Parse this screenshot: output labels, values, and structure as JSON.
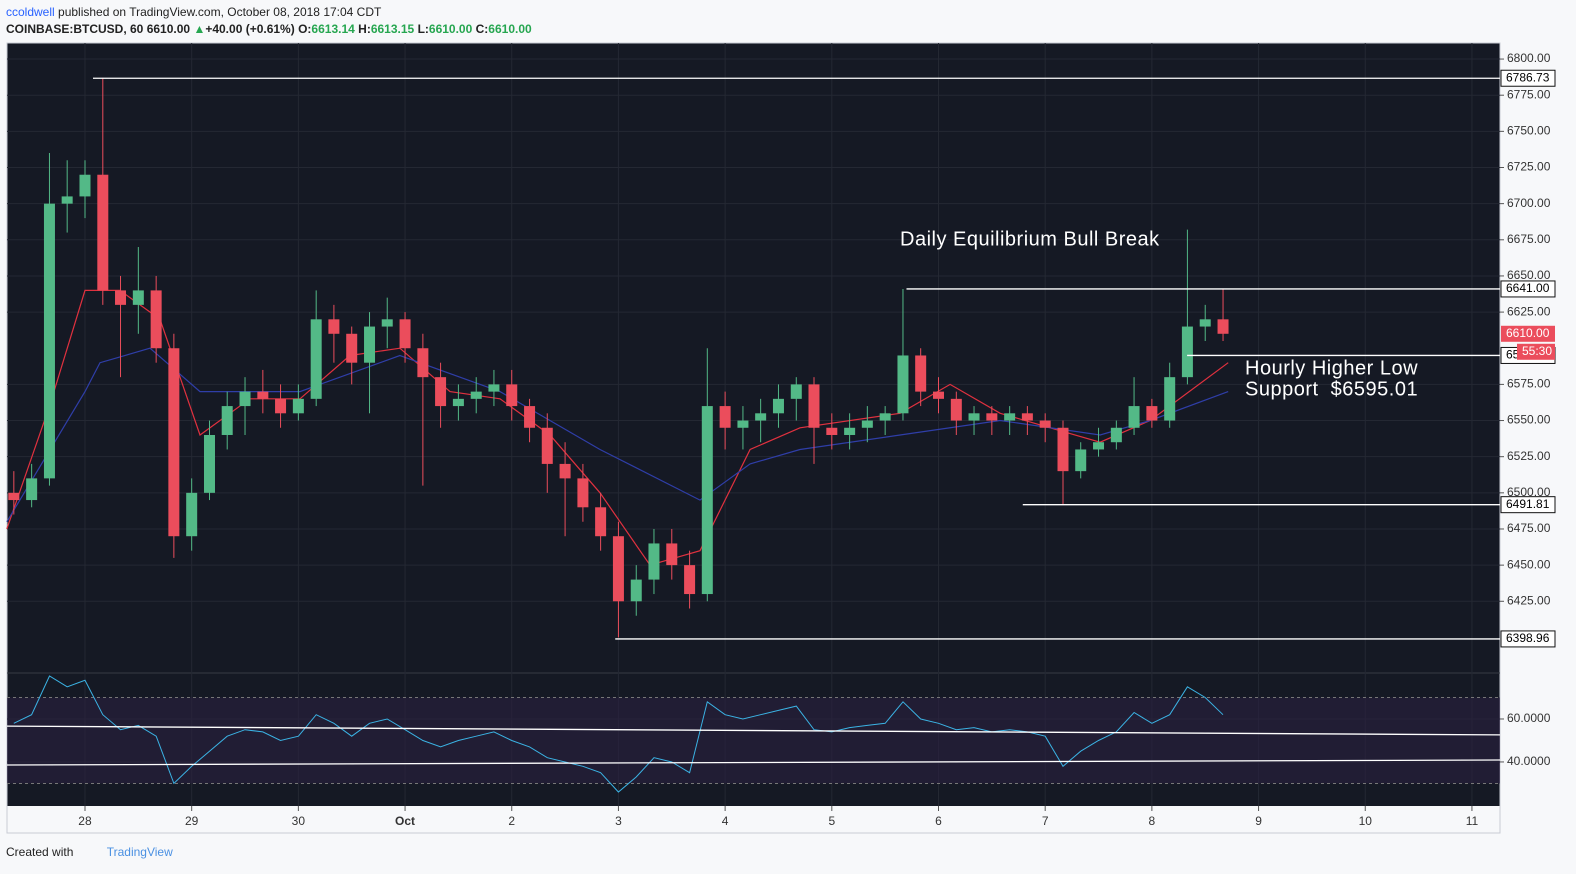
{
  "header": {
    "user": "ccoldwell",
    "published": "published on TradingView.com, October 08, 2018 17:04 CDT",
    "symbol": "COINBASE:BTCUSD, 60",
    "last": "6610.00",
    "arrow": "▲",
    "change": "+40.00 (+0.61%)",
    "o_label": "O:",
    "o": "6613.14",
    "h_label": "H:",
    "h": "6613.15",
    "l_label": "L:",
    "l": "6610.00",
    "c_label": "C:",
    "c": "6610.00"
  },
  "footer": {
    "created": "Created with",
    "brand": "TradingView"
  },
  "chart_data": [
    {
      "type": "candlestick",
      "up_color": "#53b987",
      "down_color": "#eb4d5c",
      "grid": true,
      "x": [
        -0.667,
        -0.5,
        -0.333,
        -0.167,
        0,
        0.167,
        0.333,
        0.5,
        0.667,
        0.833,
        1,
        1.167,
        1.333,
        1.5,
        1.667,
        1.833,
        2,
        2.167,
        2.333,
        2.5,
        2.667,
        2.833,
        3,
        3.167,
        3.333,
        3.5,
        3.667,
        3.833,
        4,
        4.167,
        4.333,
        4.5,
        4.667,
        4.833,
        5,
        5.167,
        5.333,
        5.5,
        5.667,
        5.833,
        6,
        6.167,
        6.333,
        6.5,
        6.667,
        6.833,
        7,
        7.167,
        7.333,
        7.5,
        7.667,
        7.833,
        8,
        8.167,
        8.333,
        8.5,
        8.667,
        8.833,
        9,
        9.167,
        9.333,
        9.5,
        9.667,
        9.833,
        10,
        10.167,
        10.333,
        10.5,
        10.667
      ],
      "open": [
        6500,
        6495,
        6510,
        6700,
        6705,
        6720,
        6640,
        6630,
        6640,
        6600,
        6470,
        6500,
        6540,
        6560,
        6570,
        6565,
        6555,
        6565,
        6620,
        6610,
        6590,
        6615,
        6620,
        6600,
        6580,
        6560,
        6565,
        6570,
        6575,
        6560,
        6545,
        6520,
        6510,
        6490,
        6470,
        6425,
        6440,
        6465,
        6450,
        6430,
        6560,
        6545,
        6550,
        6555,
        6565,
        6575,
        6545,
        6540,
        6545,
        6550,
        6555,
        6595,
        6570,
        6565,
        6550,
        6555,
        6550,
        6555,
        6550,
        6545,
        6515,
        6530,
        6535,
        6545,
        6560,
        6550,
        6580,
        6615,
        6620
      ],
      "high": [
        6515,
        6520,
        6735,
        6730,
        6730,
        6787,
        6650,
        6670,
        6650,
        6610,
        6510,
        6550,
        6570,
        6580,
        6585,
        6575,
        6575,
        6640,
        6630,
        6615,
        6625,
        6635,
        6625,
        6610,
        6590,
        6575,
        6580,
        6585,
        6585,
        6565,
        6555,
        6535,
        6520,
        6500,
        6480,
        6450,
        6475,
        6475,
        6460,
        6600,
        6570,
        6560,
        6565,
        6575,
        6580,
        6580,
        6555,
        6555,
        6560,
        6560,
        6641,
        6600,
        6580,
        6570,
        6560,
        6560,
        6560,
        6560,
        6555,
        6550,
        6535,
        6545,
        6550,
        6580,
        6565,
        6590,
        6682,
        6630,
        6641
      ],
      "low": [
        6485,
        6490,
        6505,
        6680,
        6690,
        6630,
        6580,
        6610,
        6590,
        6455,
        6460,
        6495,
        6530,
        6540,
        6555,
        6545,
        6550,
        6560,
        6590,
        6575,
        6555,
        6600,
        6590,
        6505,
        6545,
        6550,
        6555,
        6560,
        6550,
        6535,
        6500,
        6470,
        6480,
        6460,
        6400,
        6415,
        6430,
        6440,
        6420,
        6425,
        6530,
        6530,
        6535,
        6545,
        6550,
        6520,
        6530,
        6530,
        6535,
        6540,
        6550,
        6560,
        6555,
        6540,
        6540,
        6540,
        6540,
        6540,
        6535,
        6492,
        6510,
        6525,
        6530,
        6540,
        6545,
        6545,
        6575,
        6605,
        6605
      ],
      "close": [
        6495,
        6510,
        6700,
        6705,
        6720,
        6640,
        6630,
        6640,
        6600,
        6470,
        6500,
        6540,
        6560,
        6570,
        6565,
        6555,
        6565,
        6620,
        6610,
        6590,
        6615,
        6620,
        6600,
        6580,
        6560,
        6565,
        6570,
        6575,
        6560,
        6545,
        6520,
        6510,
        6490,
        6470,
        6425,
        6440,
        6465,
        6450,
        6430,
        6560,
        6545,
        6550,
        6555,
        6565,
        6575,
        6545,
        6540,
        6545,
        6550,
        6555,
        6595,
        6570,
        6565,
        6550,
        6555,
        6550,
        6555,
        6550,
        6545,
        6515,
        6530,
        6535,
        6545,
        6560,
        6550,
        6580,
        6615,
        6620,
        6610
      ],
      "series": [
        {
          "color": "#e0313f",
          "x": [
            -0.733,
            -0.333,
            0,
            0.328,
            0.703,
            1.078,
            1.546,
            2.015,
            2.484,
            2.952,
            3.421,
            3.89,
            4.359,
            4.827,
            5.296,
            5.765,
            6.234,
            6.702,
            7.64,
            8.109,
            8.578,
            9.046,
            9.515,
            9.984,
            10.715
          ],
          "values": [
            6475,
            6560,
            6640,
            6640,
            6620,
            6540,
            6565,
            6565,
            6595,
            6600,
            6570,
            6565,
            6540,
            6500,
            6450,
            6460,
            6530,
            6545,
            6555,
            6575,
            6555,
            6545,
            6535,
            6550,
            6590
          ]
        },
        {
          "color": "#2f3ea8",
          "x": [
            -0.733,
            0,
            0.141,
            0.609,
            1.078,
            2.015,
            2.952,
            3.89,
            4.827,
            5.765,
            6.234,
            6.702,
            7.64,
            8.578,
            9.515,
            9.984,
            10.715
          ],
          "values": [
            6480,
            6570,
            6590,
            6600,
            6570,
            6570,
            6595,
            6570,
            6530,
            6495,
            6520,
            6530,
            6540,
            6550,
            6540,
            6550,
            6570
          ]
        }
      ],
      "levels": [
        {
          "value": 6786.73,
          "start": 0.075
        },
        {
          "value": 6641,
          "label": "6641.00",
          "start": 7.7
        },
        {
          "value": 6595.01,
          "start": 10.33
        },
        {
          "value": 6491.81,
          "start": 8.79
        },
        {
          "value": 6398.96,
          "start": 4.97
        }
      ],
      "last_price": {
        "value": 6610,
        "label": "6610.00",
        "countdown": "55:30"
      },
      "annotations": [
        [
          "Daily Equilibrium Bull Break"
        ],
        [
          "Hourly Higher Low",
          "Support  $6595.01"
        ]
      ],
      "xlim": [
        -0.731,
        13.263
      ],
      "xticks": [
        {
          "value": 0,
          "label": "28"
        },
        {
          "value": 1,
          "label": "29"
        },
        {
          "value": 2,
          "label": "30"
        },
        {
          "value": 3,
          "label": "Oct"
        },
        {
          "value": 4,
          "label": "2"
        },
        {
          "value": 5,
          "label": "3"
        },
        {
          "value": 6,
          "label": "4"
        },
        {
          "value": 7,
          "label": "5"
        },
        {
          "value": 8,
          "label": "6"
        },
        {
          "value": 9,
          "label": "7"
        },
        {
          "value": 10,
          "label": "8"
        },
        {
          "value": 11,
          "label": "9"
        },
        {
          "value": 12,
          "label": "10"
        },
        {
          "value": 13,
          "label": "11"
        }
      ],
      "ylim": [
        6375.4,
        6811.1
      ],
      "yticks": [
        {
          "value": 6425,
          "label": "6425.00"
        },
        {
          "value": 6450,
          "label": "6450.00"
        },
        {
          "value": 6475,
          "label": "6475.00"
        },
        {
          "value": 6500,
          "label": "6500.00"
        },
        {
          "value": 6525,
          "label": "6525.00"
        },
        {
          "value": 6550,
          "label": "6550.00"
        },
        {
          "value": 6575,
          "label": "6575.00"
        },
        {
          "value": 6625,
          "label": "6625.00"
        },
        {
          "value": 6650,
          "label": "6650.00"
        },
        {
          "value": 6675,
          "label": "6675.00"
        },
        {
          "value": 6700,
          "label": "6700.00"
        },
        {
          "value": 6725,
          "label": "6725.00"
        },
        {
          "value": 6750,
          "label": "6750.00"
        },
        {
          "value": 6775,
          "label": "6775.00"
        },
        {
          "value": 6800,
          "label": "6800.00"
        }
      ]
    },
    {
      "type": "line",
      "color": "#3bb3e4",
      "band": [
        30,
        70
      ],
      "band_color": "#2a2040",
      "x": [
        -0.667,
        -0.5,
        -0.333,
        -0.167,
        0,
        0.167,
        0.333,
        0.5,
        0.667,
        0.833,
        1,
        1.167,
        1.333,
        1.5,
        1.667,
        1.833,
        2,
        2.167,
        2.333,
        2.5,
        2.667,
        2.833,
        3,
        3.167,
        3.333,
        3.5,
        3.667,
        3.833,
        4,
        4.167,
        4.333,
        4.5,
        4.667,
        4.833,
        5,
        5.167,
        5.333,
        5.5,
        5.667,
        5.833,
        6,
        6.167,
        6.333,
        6.5,
        6.667,
        6.833,
        7,
        7.167,
        7.333,
        7.5,
        7.667,
        7.833,
        8,
        8.167,
        8.333,
        8.5,
        8.667,
        8.833,
        9,
        9.167,
        9.333,
        9.5,
        9.667,
        9.833,
        10,
        10.167,
        10.333,
        10.5,
        10.667
      ],
      "values": [
        58,
        62,
        80,
        75,
        78,
        62,
        55,
        57,
        52,
        30,
        38,
        45,
        52,
        55,
        54,
        50,
        52,
        62,
        58,
        52,
        58,
        60,
        55,
        50,
        47,
        50,
        52,
        54,
        50,
        47,
        42,
        40,
        38,
        35,
        26,
        33,
        42,
        40,
        35,
        68,
        62,
        60,
        62,
        64,
        66,
        55,
        54,
        56,
        57,
        58,
        68,
        60,
        58,
        55,
        56,
        54,
        55,
        54,
        52,
        38,
        45,
        50,
        54,
        63,
        58,
        62,
        75,
        70,
        62
      ],
      "lines": [
        {
          "x": [
            -0.731,
            13.263
          ],
          "values": [
            56.7,
            52.6
          ]
        },
        {
          "x": [
            -0.731,
            13.263
          ],
          "values": [
            38.6,
            40.9
          ]
        }
      ],
      "xlim": [
        -0.731,
        13.263
      ],
      "ylim": [
        19.5,
        81.4
      ],
      "yticks": [
        {
          "value": 40,
          "label": "40.0000"
        },
        {
          "value": 60,
          "label": "60.0000"
        }
      ]
    }
  ]
}
